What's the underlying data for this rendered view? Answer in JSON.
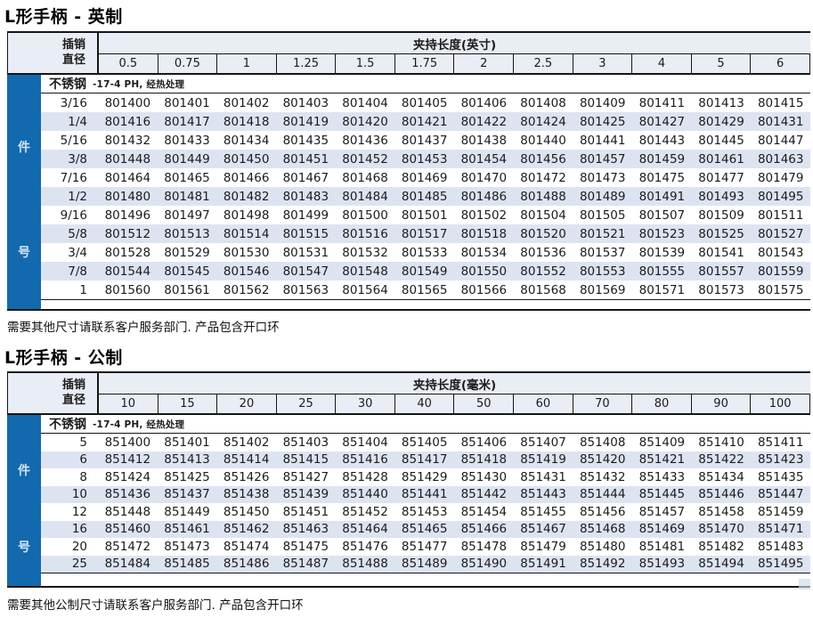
{
  "colors": {
    "bar_blue": "#1269ae",
    "header_bg": "#e9edf5",
    "stripe_bg": "#dde4f1",
    "bar_text": "#d2e4f5",
    "border_dark": "#161616",
    "corner_mark": "#cdd9e9"
  },
  "tables": [
    {
      "title": "L形手柄 - 英制",
      "pin_header_lines": [
        "插销",
        "直径"
      ],
      "length_header": "夹持长度(英寸)",
      "columns": [
        "0.5",
        "0.75",
        "1",
        "1.25",
        "1.5",
        "1.75",
        "2",
        "2.5",
        "3",
        "4",
        "5",
        "6"
      ],
      "material_name": "不锈钢",
      "material_spec": "-17-4 PH, 经热处理",
      "side_label_top": "件",
      "side_label_bottom": "号",
      "rows": [
        {
          "size": "3/16",
          "values": [
            "801400",
            "801401",
            "801402",
            "801403",
            "801404",
            "801405",
            "801406",
            "801408",
            "801409",
            "801411",
            "801413",
            "801415"
          ]
        },
        {
          "size": "1/4",
          "values": [
            "801416",
            "801417",
            "801418",
            "801419",
            "801420",
            "801421",
            "801422",
            "801424",
            "801425",
            "801427",
            "801429",
            "801431"
          ]
        },
        {
          "size": "5/16",
          "values": [
            "801432",
            "801433",
            "801434",
            "801435",
            "801436",
            "801437",
            "801438",
            "801440",
            "801441",
            "801443",
            "801445",
            "801447"
          ]
        },
        {
          "size": "3/8",
          "values": [
            "801448",
            "801449",
            "801450",
            "801451",
            "801452",
            "801453",
            "801454",
            "801456",
            "801457",
            "801459",
            "801461",
            "801463"
          ]
        },
        {
          "size": "7/16",
          "values": [
            "801464",
            "801465",
            "801466",
            "801467",
            "801468",
            "801469",
            "801470",
            "801472",
            "801473",
            "801475",
            "801477",
            "801479"
          ]
        },
        {
          "size": "1/2",
          "values": [
            "801480",
            "801481",
            "801482",
            "801483",
            "801484",
            "801485",
            "801486",
            "801488",
            "801489",
            "801491",
            "801493",
            "801495"
          ]
        },
        {
          "size": "9/16",
          "values": [
            "801496",
            "801497",
            "801498",
            "801499",
            "801500",
            "801501",
            "801502",
            "801504",
            "801505",
            "801507",
            "801509",
            "801511"
          ]
        },
        {
          "size": "5/8",
          "values": [
            "801512",
            "801513",
            "801514",
            "801515",
            "801516",
            "801517",
            "801518",
            "801520",
            "801521",
            "801523",
            "801525",
            "801527"
          ]
        },
        {
          "size": "3/4",
          "values": [
            "801528",
            "801529",
            "801530",
            "801531",
            "801532",
            "801533",
            "801534",
            "801536",
            "801537",
            "801539",
            "801541",
            "801543"
          ]
        },
        {
          "size": "7/8",
          "values": [
            "801544",
            "801545",
            "801546",
            "801547",
            "801548",
            "801549",
            "801550",
            "801552",
            "801553",
            "801555",
            "801557",
            "801559"
          ]
        },
        {
          "size": "1",
          "values": [
            "801560",
            "801561",
            "801562",
            "801563",
            "801564",
            "801565",
            "801566",
            "801568",
            "801569",
            "801571",
            "801573",
            "801575"
          ]
        }
      ],
      "footer": "需要其他尺寸请联系客户服务部门. 产品包含开口环"
    },
    {
      "title": "L形手柄 - 公制",
      "pin_header_lines": [
        "插销",
        "直径"
      ],
      "length_header": "夹持长度(毫米)",
      "columns": [
        "10",
        "15",
        "20",
        "25",
        "30",
        "40",
        "50",
        "60",
        "70",
        "80",
        "90",
        "100"
      ],
      "material_name": "不锈钢",
      "material_spec": "-17-4 PH, 经热处理",
      "side_label_top": "件",
      "side_label_bottom": "号",
      "rows": [
        {
          "size": "5",
          "values": [
            "851400",
            "851401",
            "851402",
            "851403",
            "851404",
            "851405",
            "851406",
            "851407",
            "851408",
            "851409",
            "851410",
            "851411"
          ]
        },
        {
          "size": "6",
          "values": [
            "851412",
            "851413",
            "851414",
            "851415",
            "851416",
            "851417",
            "851418",
            "851419",
            "851420",
            "851421",
            "851422",
            "851423"
          ]
        },
        {
          "size": "8",
          "values": [
            "851424",
            "851425",
            "851426",
            "851427",
            "851428",
            "851429",
            "851430",
            "851431",
            "851432",
            "851433",
            "851434",
            "851435"
          ]
        },
        {
          "size": "10",
          "values": [
            "851436",
            "851437",
            "851438",
            "851439",
            "851440",
            "851441",
            "851442",
            "851443",
            "851444",
            "851445",
            "851446",
            "851447"
          ]
        },
        {
          "size": "12",
          "values": [
            "851448",
            "851449",
            "851450",
            "851451",
            "851452",
            "851453",
            "851454",
            "851455",
            "851456",
            "851457",
            "851458",
            "851459"
          ]
        },
        {
          "size": "16",
          "values": [
            "851460",
            "851461",
            "851462",
            "851463",
            "851464",
            "851465",
            "851466",
            "851467",
            "851468",
            "851469",
            "851470",
            "851471"
          ]
        },
        {
          "size": "20",
          "values": [
            "851472",
            "851473",
            "851474",
            "851475",
            "851476",
            "851477",
            "851478",
            "851479",
            "851480",
            "851481",
            "851482",
            "851483"
          ]
        },
        {
          "size": "25",
          "values": [
            "851484",
            "851485",
            "851486",
            "851487",
            "851488",
            "851489",
            "851490",
            "851491",
            "851492",
            "851493",
            "851494",
            "851495"
          ]
        }
      ],
      "footer": "需要其他公制尺寸请联系客户服务部门. 产品包含开口环"
    }
  ]
}
